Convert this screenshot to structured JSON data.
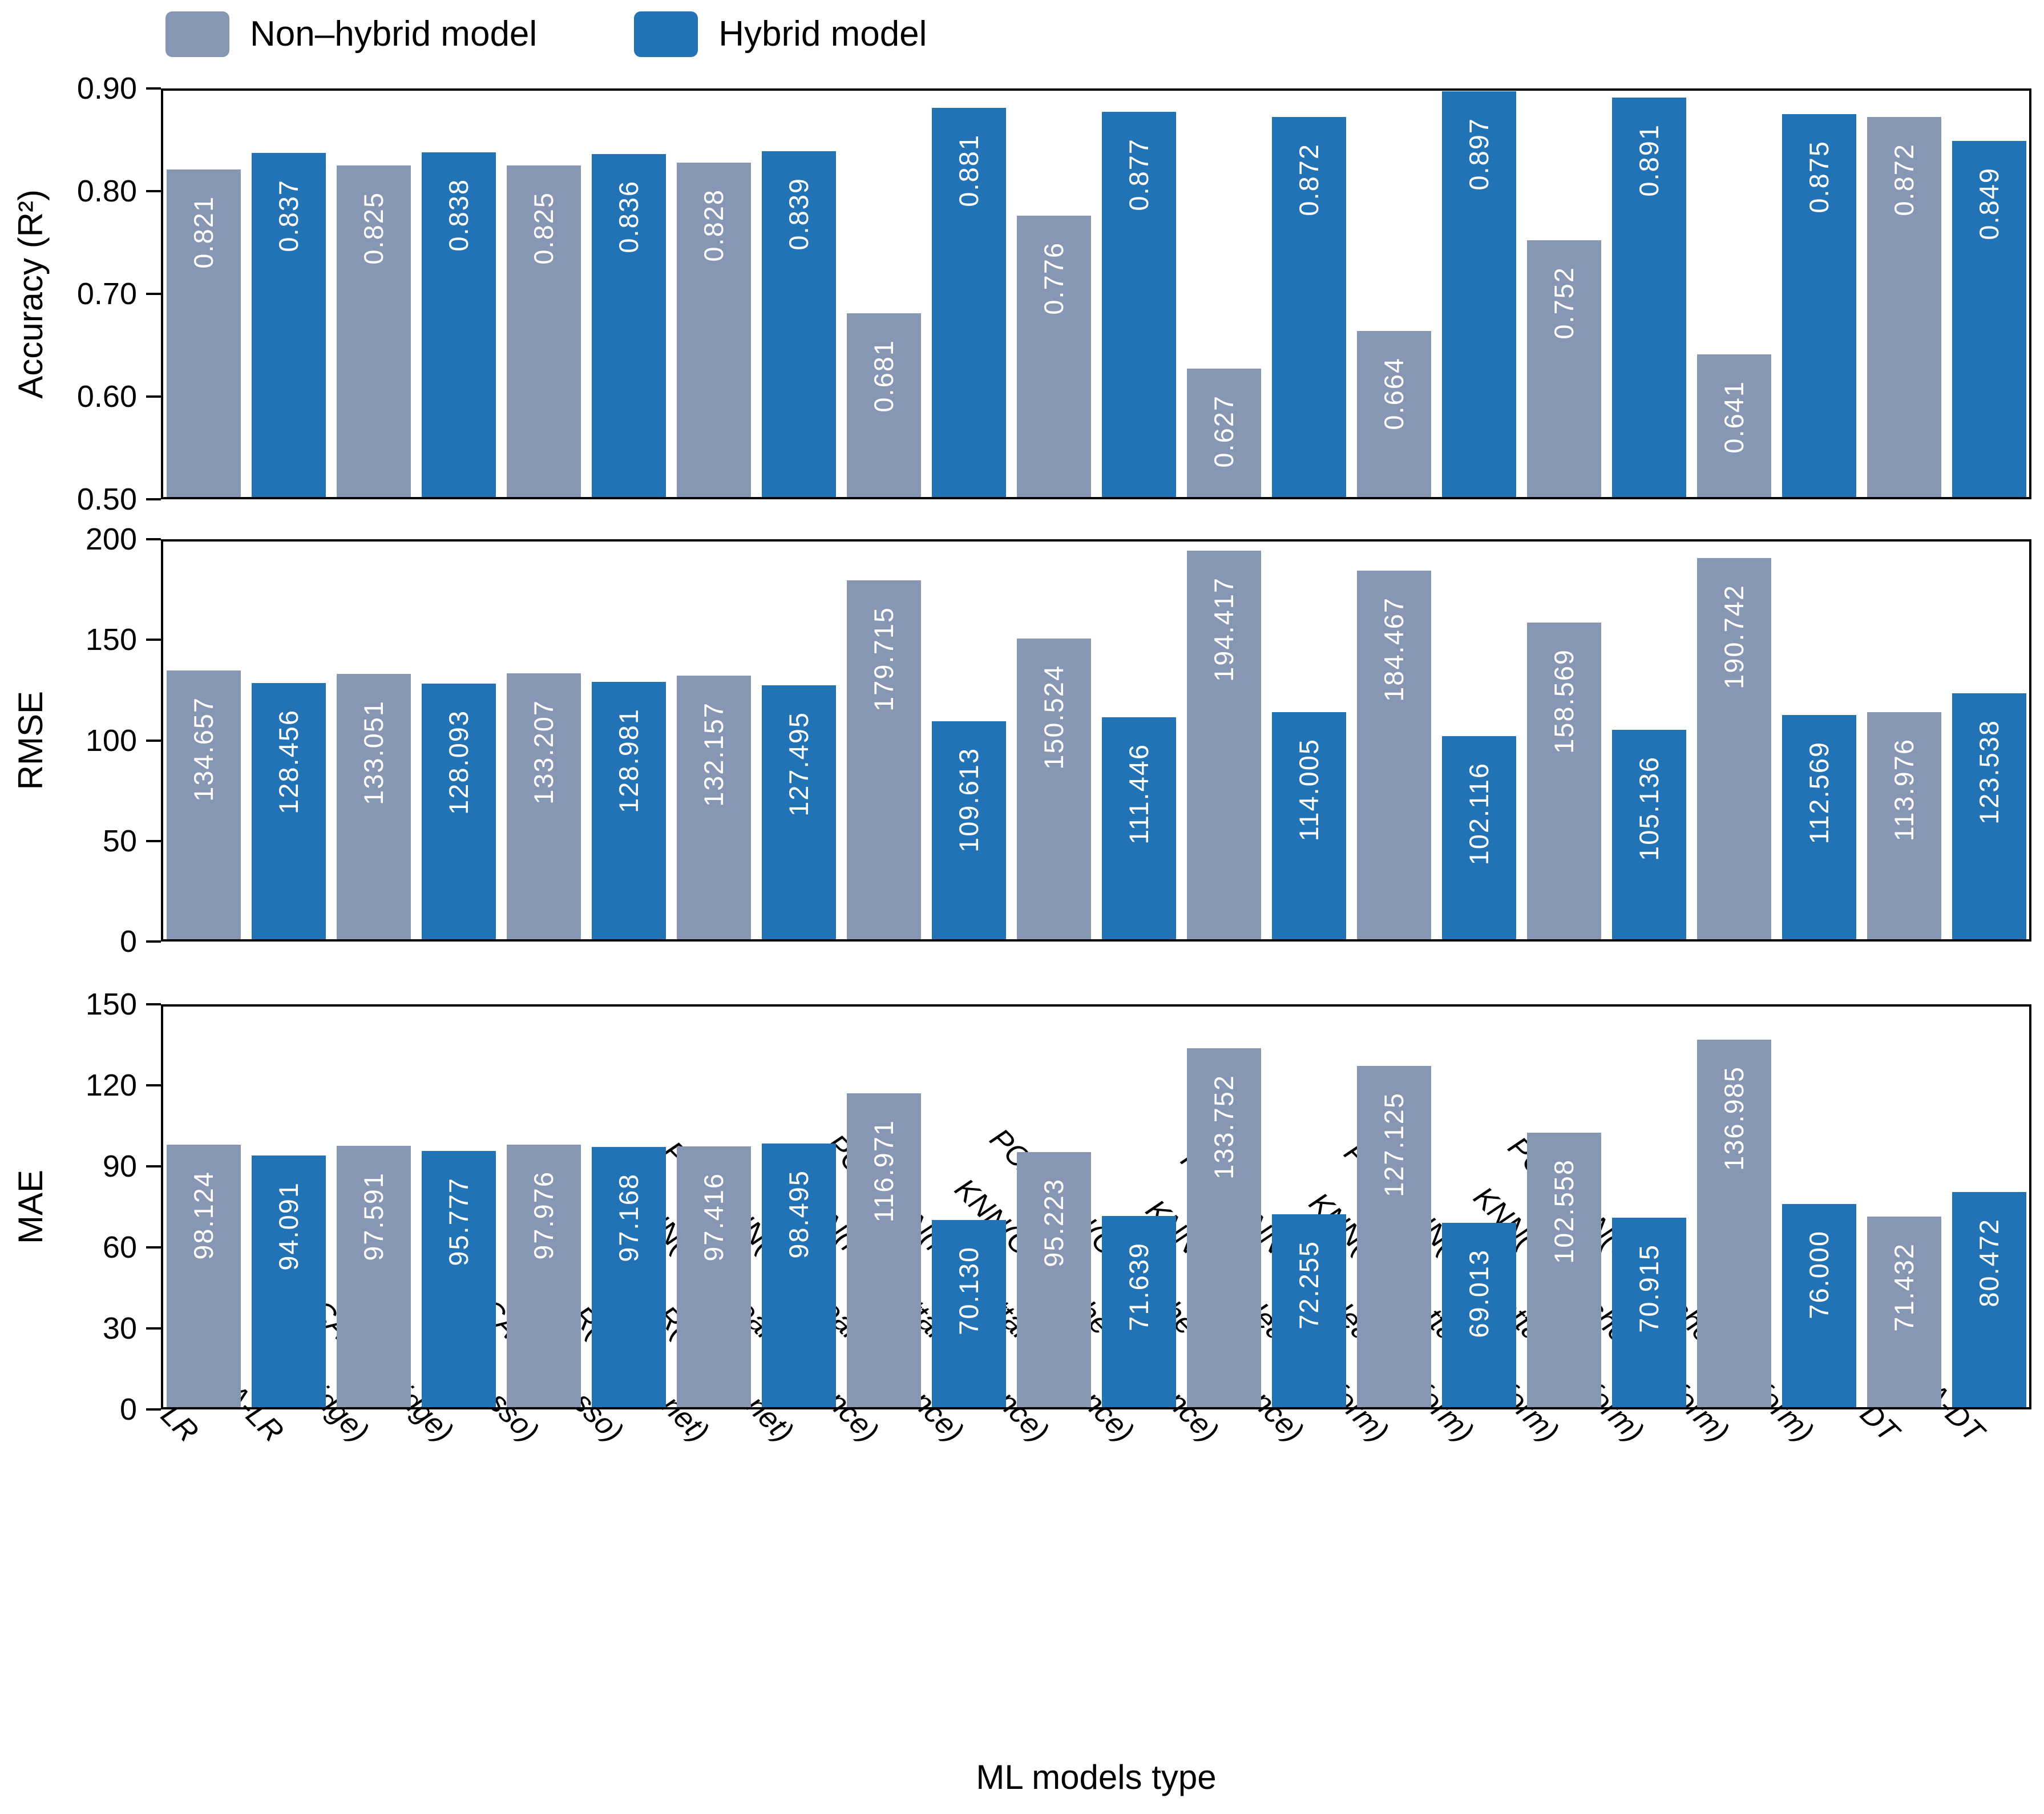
{
  "chart_data": {
    "type": "bar",
    "title": "",
    "xlabel": "ML models type",
    "grid": false,
    "legend_position": "top-left",
    "legend": [
      {
        "label": "Non–hybrid model",
        "color": "#8796B2"
      },
      {
        "label": "Hybrid model",
        "color": "#2273B6"
      }
    ],
    "bar_label_color": "#ffffff",
    "categories": [
      "LR",
      "PCA-LR",
      "LR(Ridge)",
      "PCA-LR(Ridge)",
      "LR(Lasso)",
      "PCA-LR(Lasso)",
      "LR(Elastic net)",
      "PCA-LR(Elastic net)",
      "KNN(Euclidean_distance)",
      "PCA-KNN(Euclidean_distance)",
      "KNN(Manhattan_distance)",
      "PCA-KNN(Manhattan_distance)",
      "KNN(Chebyshev_distance)",
      "PCA-KNN(Chebyshev_distance)",
      "KNN(Euclidean_uniform)",
      "PCA-KNN(Euclidean_uniform)",
      "KNN(Manhattan_uniform)",
      "PCA-KNN(Manhattan_uniform)",
      "KNN(Chebyshev_uniform)",
      "PCA-KNN(Chebyshev_uniform)",
      "DT",
      "PCA-DT"
    ],
    "panels": [
      {
        "id": "accuracy",
        "ylabel": "Accuracy (R²)",
        "ymin": 0.5,
        "ymax": 0.9,
        "yticks": [
          {
            "v": 0.9,
            "label": "0.90"
          },
          {
            "v": 0.8,
            "label": "0.80"
          },
          {
            "v": 0.7,
            "label": "0.70"
          },
          {
            "v": 0.6,
            "label": "0.60"
          },
          {
            "v": 0.5,
            "label": "0.50"
          }
        ],
        "values": [
          0.821,
          0.837,
          0.825,
          0.838,
          0.825,
          0.836,
          0.828,
          0.839,
          0.681,
          0.881,
          0.776,
          0.877,
          0.627,
          0.872,
          0.664,
          0.897,
          0.752,
          0.891,
          0.641,
          0.875,
          0.872,
          0.849
        ],
        "value_labels": [
          "0.821",
          "0.837",
          "0.825",
          "0.838",
          "0.825",
          "0.836",
          "0.828",
          "0.839",
          "0.681",
          "0.881",
          "0.776",
          "0.877",
          "0.627",
          "0.872",
          "0.664",
          "0.897",
          "0.752",
          "0.891",
          "0.641",
          "0.875",
          "0.872",
          "0.849"
        ]
      },
      {
        "id": "rmse",
        "ylabel": "RMSE",
        "ymin": 0,
        "ymax": 200,
        "yticks": [
          {
            "v": 200,
            "label": "200"
          },
          {
            "v": 150,
            "label": "150"
          },
          {
            "v": 100,
            "label": "100"
          },
          {
            "v": 50,
            "label": "50"
          },
          {
            "v": 0,
            "label": "0"
          }
        ],
        "values": [
          134.657,
          128.456,
          133.051,
          128.093,
          133.207,
          128.981,
          132.157,
          127.495,
          179.715,
          109.613,
          150.524,
          111.446,
          194.417,
          114.005,
          184.467,
          102.116,
          158.569,
          105.136,
          190.742,
          112.569,
          113.976,
          123.538
        ],
        "value_labels": [
          "134.657",
          "128.456",
          "133.051",
          "128.093",
          "133.207",
          "128.981",
          "132.157",
          "127.495",
          "179.715",
          "109.613",
          "150.524",
          "111.446",
          "194.417",
          "114.005",
          "184.467",
          "102.116",
          "158.569",
          "105.136",
          "190.742",
          "112.569",
          "113.976",
          "123.538"
        ]
      },
      {
        "id": "mae",
        "ylabel": "MAE",
        "ymin": 0,
        "ymax": 150,
        "yticks": [
          {
            "v": 150,
            "label": "150"
          },
          {
            "v": 120,
            "label": "120"
          },
          {
            "v": 90,
            "label": "90"
          },
          {
            "v": 60,
            "label": "60"
          },
          {
            "v": 30,
            "label": "30"
          },
          {
            "v": 0,
            "label": "0"
          }
        ],
        "values": [
          98.124,
          94.091,
          97.591,
          95.777,
          97.976,
          97.168,
          97.416,
          98.495,
          116.971,
          70.13,
          95.223,
          71.639,
          133.752,
          72.255,
          127.125,
          69.013,
          102.558,
          70.915,
          136.985,
          76.0,
          71.432,
          80.472
        ],
        "value_labels": [
          "98.124",
          "94.091",
          "97.591",
          "95.777",
          "97.976",
          "97.168",
          "97.416",
          "98.495",
          "116.971",
          "70.130",
          "95.223",
          "71.639",
          "133.752",
          "72.255",
          "127.125",
          "69.013",
          "102.558",
          "70.915",
          "136.985",
          "76.000",
          "71.432",
          "80.472"
        ]
      }
    ]
  }
}
